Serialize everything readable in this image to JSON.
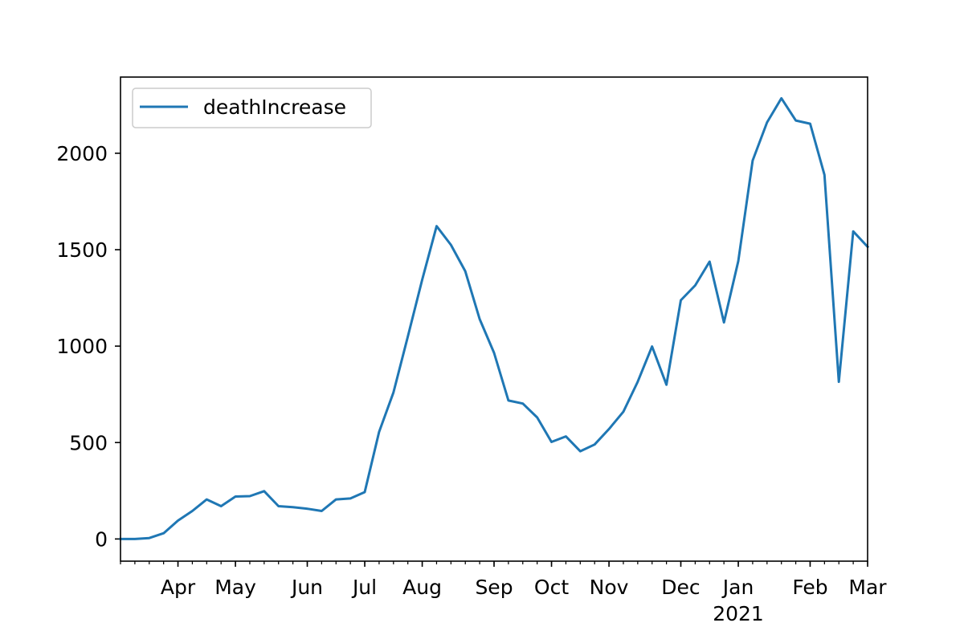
{
  "chart_data": {
    "type": "line",
    "title": "",
    "xlabel": "",
    "ylabel": "",
    "x": [
      "2020-03-02",
      "2020-03-09",
      "2020-03-16",
      "2020-03-23",
      "2020-03-30",
      "2020-04-06",
      "2020-04-13",
      "2020-04-20",
      "2020-04-27",
      "2020-05-04",
      "2020-05-11",
      "2020-05-18",
      "2020-05-25",
      "2020-06-01",
      "2020-06-08",
      "2020-06-15",
      "2020-06-22",
      "2020-06-29",
      "2020-07-06",
      "2020-07-13",
      "2020-07-20",
      "2020-07-27",
      "2020-08-03",
      "2020-08-10",
      "2020-08-17",
      "2020-08-24",
      "2020-08-31",
      "2020-09-07",
      "2020-09-14",
      "2020-09-21",
      "2020-09-28",
      "2020-10-05",
      "2020-10-12",
      "2020-10-19",
      "2020-10-26",
      "2020-11-02",
      "2020-11-09",
      "2020-11-16",
      "2020-11-23",
      "2020-11-30",
      "2020-12-07",
      "2020-12-14",
      "2020-12-21",
      "2020-12-28",
      "2021-01-04",
      "2021-01-11",
      "2021-01-18",
      "2021-01-25",
      "2021-02-01",
      "2021-02-08",
      "2021-02-15",
      "2021-02-22",
      "2021-03-01"
    ],
    "series": [
      {
        "name": "deathIncrease",
        "values": [
          0,
          0,
          5,
          30,
          95,
          145,
          205,
          170,
          220,
          222,
          248,
          170,
          165,
          157,
          145,
          205,
          210,
          243,
          555,
          760,
          1050,
          1345,
          1622,
          1525,
          1388,
          1140,
          965,
          718,
          702,
          630,
          503,
          532,
          455,
          490,
          570,
          660,
          815,
          998,
          800,
          1238,
          1315,
          1438,
          1123,
          1440,
          1962,
          2160,
          2285,
          2170,
          2153,
          1888,
          815,
          1595,
          1515
        ]
      }
    ],
    "ylim": [
      -115,
      2395
    ],
    "xlim": [
      "2020-03-02",
      "2021-03-01"
    ],
    "yticks": [
      0,
      500,
      1000,
      1500,
      2000
    ],
    "xticks": [
      {
        "date": "2020-03-30",
        "label": "Apr"
      },
      {
        "date": "2020-04-27",
        "label": "May"
      },
      {
        "date": "2020-06-01",
        "label": "Jun"
      },
      {
        "date": "2020-06-29",
        "label": "Jul"
      },
      {
        "date": "2020-07-27",
        "label": "Aug"
      },
      {
        "date": "2020-08-31",
        "label": "Sep"
      },
      {
        "date": "2020-09-28",
        "label": "Oct"
      },
      {
        "date": "2020-10-26",
        "label": "Nov"
      },
      {
        "date": "2020-11-30",
        "label": "Dec"
      },
      {
        "date": "2020-12-28",
        "label": "Jan",
        "sublabel": "2021"
      },
      {
        "date": "2021-02-01",
        "label": "Feb"
      },
      {
        "date": "2021-03-01",
        "label": "Mar"
      }
    ],
    "grid": false,
    "legend_position": "top-left",
    "colors": {
      "series": "#1f77b4",
      "axes": "#000000",
      "background": "#ffffff"
    }
  }
}
